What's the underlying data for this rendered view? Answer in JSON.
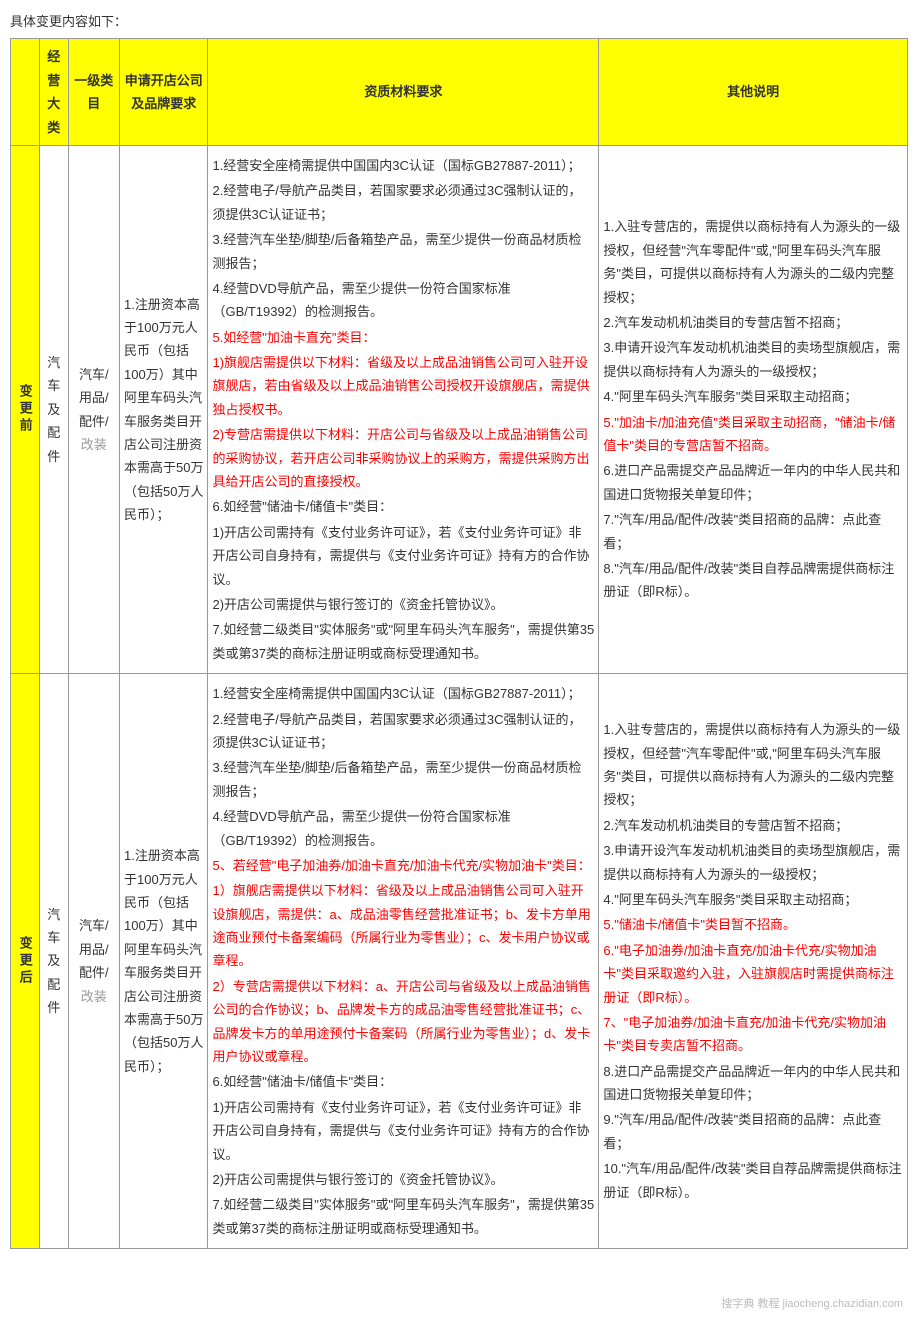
{
  "intro": "具体变更内容如下：",
  "headers": {
    "state_before": "变更前",
    "state_after": "变更后",
    "big_category": "经营大类",
    "level1": "一级类目",
    "company_req": "申请开店公司及品牌要求",
    "materials": "资质材料要求",
    "notes": "其他说明"
  },
  "common": {
    "big_category": "汽车及配件",
    "level1": {
      "l1": "汽车/",
      "l2": "用品/",
      "l3": "配件/",
      "l4_gray": "改装"
    },
    "company_req": "1.注册资本高于100万元人民币（包括100万）其中阿里车码头汽车服务类目开店公司注册资本需高于50万（包括50万人民币）；"
  },
  "before": {
    "mat": {
      "m1": "1.经营安全座椅需提供中国国内3C认证（国标GB27887-2011）；",
      "m2": "2.经营电子/导航产品类目，若国家要求必须通过3C强制认证的，须提供3C认证证书；",
      "m3": "3.经营汽车坐垫/脚垫/后备箱垫产品，需至少提供一份商品材质检测报告；",
      "m4": "4.经营DVD导航产品，需至少提供一份符合国家标准（GB/T19392）的检测报告。",
      "m5_red": "5.如经营\"加油卡直充\"类目：",
      "m5_1_red": "1)旗舰店需提供以下材料：省级及以上成品油销售公司可入驻开设旗舰店，若由省级及以上成品油销售公司授权开设旗舰店，需提供独占授权书。",
      "m5_2_red": "2)专营店需提供以下材料：开店公司与省级及以上成品油销售公司的采购协议，若开店公司非采购协议上的采购方，需提供采购方出具给开店公司的直接授权。",
      "m6": "6.如经营\"储油卡/储值卡\"类目：",
      "m6_1": "1)开店公司需持有《支付业务许可证》，若《支付业务许可证》非开店公司自身持有，需提供与《支付业务许可证》持有方的合作协议。",
      "m6_2": "2)开店公司需提供与银行签订的《资金托管协议》。",
      "m7": "7.如经营二级类目\"实体服务\"或\"阿里车码头汽车服务\"，需提供第35类或第37类的商标注册证明或商标受理通知书。"
    },
    "notes": {
      "n1": "1.入驻专营店的，需提供以商标持有人为源头的一级授权，但经营\"汽车零配件\"或,\"阿里车码头汽车服务\"类目，可提供以商标持有人为源头的二级内完整授权；",
      "n2": "2.汽车发动机机油类目的专营店暂不招商；",
      "n3": "3.申请开设汽车发动机机油类目的卖场型旗舰店，需提供以商标持有人为源头的一级授权；",
      "n4": "4.\"阿里车码头汽车服务\"类目采取主动招商；",
      "n5_red": "5.\"加油卡/加油充值\"类目采取主动招商，\"储油卡/储值卡\"类目的专营店暂不招商。",
      "n6": "6.进口产品需提交产品品牌近一年内的中华人民共和国进口货物报关单复印件；",
      "n7": "7.\"汽车/用品/配件/改装\"类目招商的品牌：点此查看；",
      "n8": "8.\"汽车/用品/配件/改装\"类目自荐品牌需提供商标注册证（即R标）。"
    }
  },
  "after": {
    "mat": {
      "m1": "1.经营安全座椅需提供中国国内3C认证（国标GB27887-2011）；",
      "m2": "2.经营电子/导航产品类目，若国家要求必须通过3C强制认证的，须提供3C认证证书；",
      "m3": "3.经营汽车坐垫/脚垫/后备箱垫产品，需至少提供一份商品材质检测报告；",
      "m4": "4.经营DVD导航产品，需至少提供一份符合国家标准（GB/T19392）的检测报告。",
      "m5_red": "5、若经营\"电子加油券/加油卡直充/加油卡代充/实物加油卡\"类目：",
      "m5_1_red": "1）旗舰店需提供以下材料：省级及以上成品油销售公司可入驻开设旗舰店，需提供：a、成品油零售经营批准证书；b、发卡方单用途商业预付卡备案编码（所属行业为零售业）；c、发卡用户协议或章程。",
      "m5_2_red": "2）专营店需提供以下材料：a、开店公司与省级及以上成品油销售公司的合作协议；b、品牌发卡方的成品油零售经营批准证书；c、品牌发卡方的单用途预付卡备案码（所属行业为零售业）；d、发卡用户协议或章程。",
      "m6": "6.如经营\"储油卡/储值卡\"类目：",
      "m6_1": "1)开店公司需持有《支付业务许可证》，若《支付业务许可证》非开店公司自身持有，需提供与《支付业务许可证》持有方的合作协议。",
      "m6_2": "2)开店公司需提供与银行签订的《资金托管协议》。",
      "m7": "7.如经营二级类目\"实体服务\"或\"阿里车码头汽车服务\"，需提供第35类或第37类的商标注册证明或商标受理通知书。"
    },
    "notes": {
      "n1": "1.入驻专营店的，需提供以商标持有人为源头的一级授权，但经营\"汽车零配件\"或,\"阿里车码头汽车服务\"类目，可提供以商标持有人为源头的二级内完整授权；",
      "n2": "2.汽车发动机机油类目的专营店暂不招商；",
      "n3": "3.申请开设汽车发动机机油类目的卖场型旗舰店，需提供以商标持有人为源头的一级授权；",
      "n4": "4.\"阿里车码头汽车服务\"类目采取主动招商；",
      "n5_red": "5.\"储油卡/储值卡\"类目暂不招商。",
      "n6_red": "6.\"电子加油券/加油卡直充/加油卡代充/实物加油卡\"类目采取邀约入驻，入驻旗舰店时需提供商标注册证（即R标）。",
      "n7_red": "7、\"电子加油券/加油卡直充/加油卡代充/实物加油卡\"类目专卖店暂不招商。",
      "n8": "8.进口产品需提交产品品牌近一年内的中华人民共和国进口货物报关单复印件；",
      "n9": "9.\"汽车/用品/配件/改装\"类目招商的品牌：点此查看；",
      "n10": "10.\"汽车/用品/配件/改装\"类目自荐品牌需提供商标注册证（即R标）。"
    }
  },
  "watermark": "搜字典 教程 jiaocheng.chazidian.com"
}
